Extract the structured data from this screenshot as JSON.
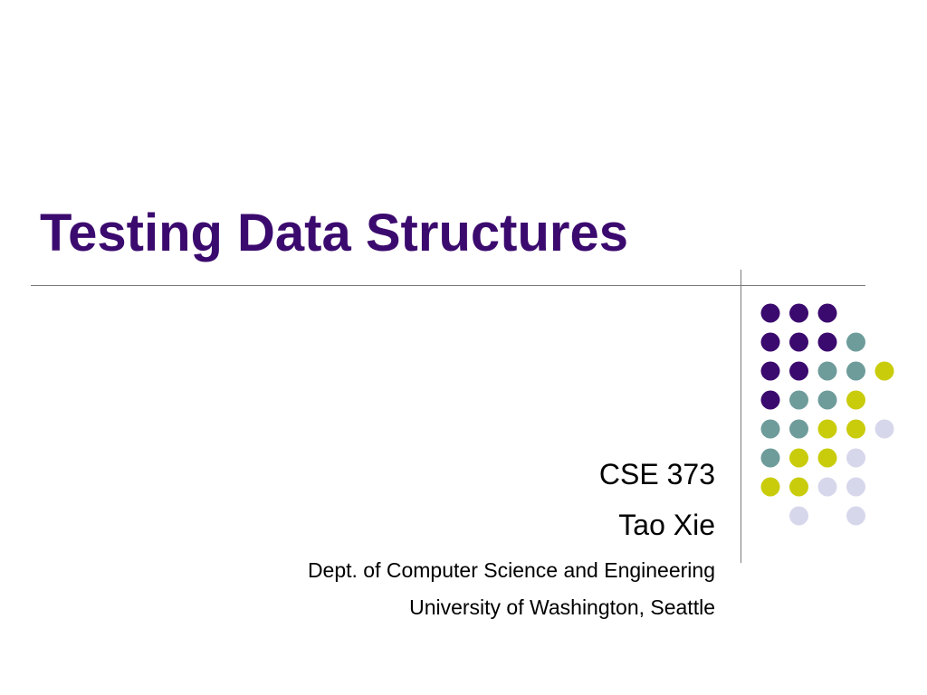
{
  "slide": {
    "title": "Testing Data Structures",
    "subtitle_lines": [
      {
        "text": "CSE 373",
        "size": "large"
      },
      {
        "text": "Tao Xie",
        "size": "large"
      },
      {
        "text": "Dept. of Computer Science and Engineering",
        "size": "small"
      },
      {
        "text": "University of Washington, Seattle",
        "size": "small"
      }
    ]
  },
  "colors": {
    "title": "#3b0a6e",
    "rule": "#7a7a7a",
    "dot_purple": "#3b0a6e",
    "dot_teal": "#6e9c9b",
    "dot_yellow": "#c9cc0a",
    "dot_lavender": "#d7d7ec"
  },
  "decoration": {
    "name": "dot-grid-decoration",
    "rows": [
      [
        "purple",
        "purple",
        "purple",
        "",
        "",
        ""
      ],
      [
        "purple",
        "purple",
        "purple",
        "teal",
        "",
        ""
      ],
      [
        "purple",
        "purple",
        "teal",
        "teal",
        "yellow",
        ""
      ],
      [
        "purple",
        "teal",
        "teal",
        "yellow",
        "",
        ""
      ],
      [
        "teal",
        "teal",
        "yellow",
        "yellow",
        "lavender",
        ""
      ],
      [
        "teal",
        "yellow",
        "yellow",
        "lavender",
        "",
        ""
      ],
      [
        "yellow",
        "yellow",
        "lavender",
        "lavender",
        "",
        ""
      ],
      [
        "",
        "lavender",
        "",
        "lavender",
        "",
        ""
      ]
    ]
  }
}
